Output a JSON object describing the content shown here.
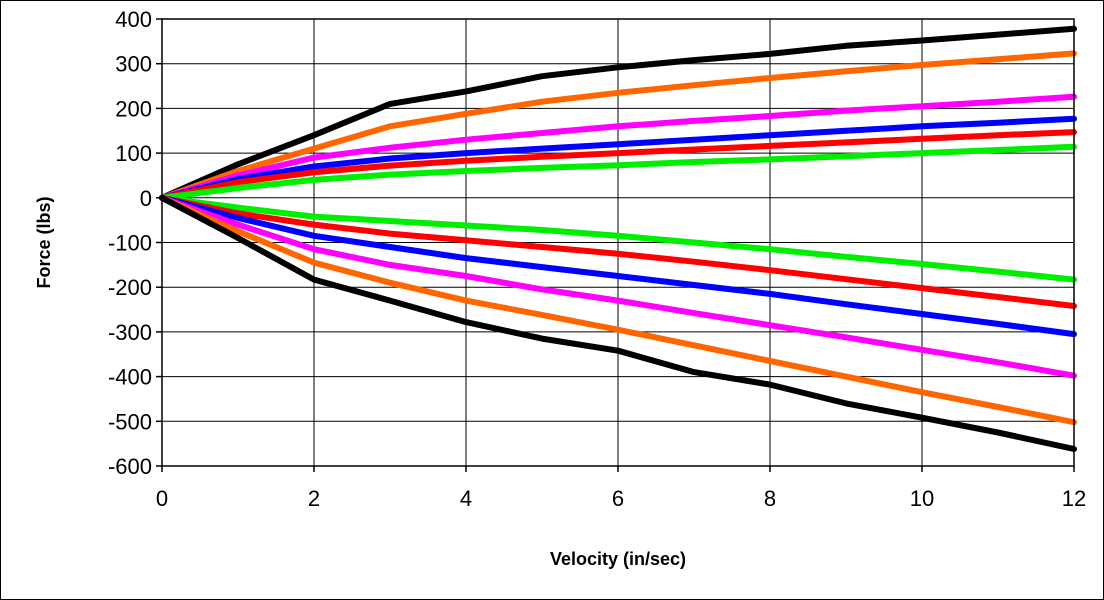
{
  "chart_data": {
    "type": "line",
    "title": "",
    "xlabel": "Velocity (in/sec)",
    "ylabel": "Force (lbs)",
    "xlim": [
      0,
      12
    ],
    "ylim": [
      -600,
      400
    ],
    "x_ticks": [
      0,
      2,
      4,
      6,
      8,
      10,
      12
    ],
    "y_ticks": [
      400,
      300,
      200,
      100,
      0,
      -100,
      -200,
      -300,
      -400,
      -500,
      -600
    ],
    "grid": true,
    "legend": "none",
    "series": [
      {
        "color": "#000000",
        "points": [
          [
            0,
            0
          ],
          [
            1,
            75
          ],
          [
            2,
            140
          ],
          [
            3,
            210
          ],
          [
            4,
            238
          ],
          [
            5,
            272
          ],
          [
            6,
            292
          ],
          [
            7,
            308
          ],
          [
            8,
            322
          ],
          [
            9,
            340
          ],
          [
            10,
            352
          ],
          [
            11,
            365
          ],
          [
            12,
            378
          ]
        ]
      },
      {
        "color": "#FF6600",
        "points": [
          [
            0,
            0
          ],
          [
            1,
            60
          ],
          [
            2,
            110
          ],
          [
            3,
            160
          ],
          [
            4,
            188
          ],
          [
            5,
            215
          ],
          [
            6,
            235
          ],
          [
            7,
            252
          ],
          [
            8,
            268
          ],
          [
            9,
            283
          ],
          [
            10,
            297
          ],
          [
            11,
            310
          ],
          [
            12,
            323
          ]
        ]
      },
      {
        "color": "#FF00FF",
        "points": [
          [
            0,
            0
          ],
          [
            1,
            50
          ],
          [
            2,
            90
          ],
          [
            3,
            112
          ],
          [
            4,
            130
          ],
          [
            5,
            145
          ],
          [
            6,
            160
          ],
          [
            7,
            172
          ],
          [
            8,
            183
          ],
          [
            9,
            195
          ],
          [
            10,
            205
          ],
          [
            11,
            215
          ],
          [
            12,
            226
          ]
        ]
      },
      {
        "color": "#0000FF",
        "points": [
          [
            0,
            0
          ],
          [
            1,
            42
          ],
          [
            2,
            70
          ],
          [
            3,
            88
          ],
          [
            4,
            100
          ],
          [
            5,
            110
          ],
          [
            6,
            120
          ],
          [
            7,
            130
          ],
          [
            8,
            140
          ],
          [
            9,
            150
          ],
          [
            10,
            160
          ],
          [
            11,
            168
          ],
          [
            12,
            177
          ]
        ]
      },
      {
        "color": "#FF0000",
        "points": [
          [
            0,
            0
          ],
          [
            1,
            35
          ],
          [
            2,
            57
          ],
          [
            3,
            72
          ],
          [
            4,
            83
          ],
          [
            5,
            92
          ],
          [
            6,
            100
          ],
          [
            7,
            108
          ],
          [
            8,
            116
          ],
          [
            9,
            124
          ],
          [
            10,
            132
          ],
          [
            11,
            140
          ],
          [
            12,
            147
          ]
        ]
      },
      {
        "color": "#00EE00",
        "points": [
          [
            0,
            0
          ],
          [
            1,
            22
          ],
          [
            2,
            40
          ],
          [
            3,
            52
          ],
          [
            4,
            60
          ],
          [
            5,
            67
          ],
          [
            6,
            73
          ],
          [
            7,
            80
          ],
          [
            8,
            86
          ],
          [
            9,
            93
          ],
          [
            10,
            100
          ],
          [
            11,
            107
          ],
          [
            12,
            114
          ]
        ]
      },
      {
        "color": "#00EE00",
        "points": [
          [
            0,
            0
          ],
          [
            1,
            -22
          ],
          [
            2,
            -42
          ],
          [
            3,
            -52
          ],
          [
            4,
            -62
          ],
          [
            5,
            -72
          ],
          [
            6,
            -85
          ],
          [
            7,
            -100
          ],
          [
            8,
            -115
          ],
          [
            9,
            -132
          ],
          [
            10,
            -148
          ],
          [
            11,
            -165
          ],
          [
            12,
            -183
          ]
        ]
      },
      {
        "color": "#FF0000",
        "points": [
          [
            0,
            0
          ],
          [
            1,
            -35
          ],
          [
            2,
            -60
          ],
          [
            3,
            -80
          ],
          [
            4,
            -95
          ],
          [
            5,
            -110
          ],
          [
            6,
            -125
          ],
          [
            7,
            -143
          ],
          [
            8,
            -162
          ],
          [
            9,
            -182
          ],
          [
            10,
            -202
          ],
          [
            11,
            -222
          ],
          [
            12,
            -242
          ]
        ]
      },
      {
        "color": "#0000FF",
        "points": [
          [
            0,
            0
          ],
          [
            1,
            -45
          ],
          [
            2,
            -85
          ],
          [
            3,
            -110
          ],
          [
            4,
            -135
          ],
          [
            5,
            -155
          ],
          [
            6,
            -175
          ],
          [
            7,
            -195
          ],
          [
            8,
            -215
          ],
          [
            9,
            -238
          ],
          [
            10,
            -260
          ],
          [
            11,
            -282
          ],
          [
            12,
            -305
          ]
        ]
      },
      {
        "color": "#FF00FF",
        "points": [
          [
            0,
            0
          ],
          [
            1,
            -60
          ],
          [
            2,
            -115
          ],
          [
            3,
            -150
          ],
          [
            4,
            -175
          ],
          [
            5,
            -205
          ],
          [
            6,
            -230
          ],
          [
            7,
            -258
          ],
          [
            8,
            -285
          ],
          [
            9,
            -312
          ],
          [
            10,
            -340
          ],
          [
            11,
            -368
          ],
          [
            12,
            -398
          ]
        ]
      },
      {
        "color": "#FF6600",
        "points": [
          [
            0,
            0
          ],
          [
            1,
            -75
          ],
          [
            2,
            -145
          ],
          [
            3,
            -190
          ],
          [
            4,
            -230
          ],
          [
            5,
            -262
          ],
          [
            6,
            -295
          ],
          [
            7,
            -330
          ],
          [
            8,
            -365
          ],
          [
            9,
            -400
          ],
          [
            10,
            -435
          ],
          [
            11,
            -468
          ],
          [
            12,
            -502
          ]
        ]
      },
      {
        "color": "#000000",
        "points": [
          [
            0,
            0
          ],
          [
            1,
            -90
          ],
          [
            2,
            -183
          ],
          [
            3,
            -230
          ],
          [
            4,
            -278
          ],
          [
            5,
            -315
          ],
          [
            6,
            -342
          ],
          [
            7,
            -390
          ],
          [
            8,
            -418
          ],
          [
            9,
            -460
          ],
          [
            10,
            -492
          ],
          [
            11,
            -525
          ],
          [
            12,
            -562
          ]
        ]
      }
    ]
  }
}
